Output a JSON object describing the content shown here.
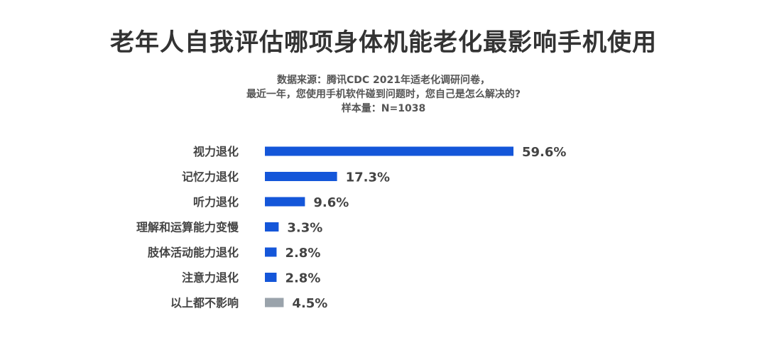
{
  "header": {
    "title": "老年人自我评估哪项身体机能老化最影响手机使用",
    "subtitle_lines": [
      "数据来源：腾讯CDC 2021年适老化调研问卷，",
      "最近一年，您使用手机软件碰到问题时，您自己是怎么解决的?",
      "样本量：N=1038"
    ]
  },
  "colors": {
    "primary": "#1456d9",
    "neutral": "#9aa3ab"
  },
  "chart_data": {
    "type": "bar",
    "orientation": "horizontal",
    "categories": [
      "视力退化",
      "记忆力退化",
      "听力退化",
      "理解和运算能力变慢",
      "肢体活动能力退化",
      "注意力退化",
      "以上都不影响"
    ],
    "values": [
      59.6,
      17.3,
      9.6,
      3.3,
      2.8,
      2.8,
      4.5
    ],
    "value_labels": [
      "59.6%",
      "17.3%",
      "9.6%",
      "3.3%",
      "2.8%",
      "2.8%",
      "4.5%"
    ],
    "bar_colors": [
      "#1456d9",
      "#1456d9",
      "#1456d9",
      "#1456d9",
      "#1456d9",
      "#1456d9",
      "#9aa3ab"
    ],
    "xlim": [
      0,
      60
    ],
    "grid": false,
    "legend": "none"
  }
}
